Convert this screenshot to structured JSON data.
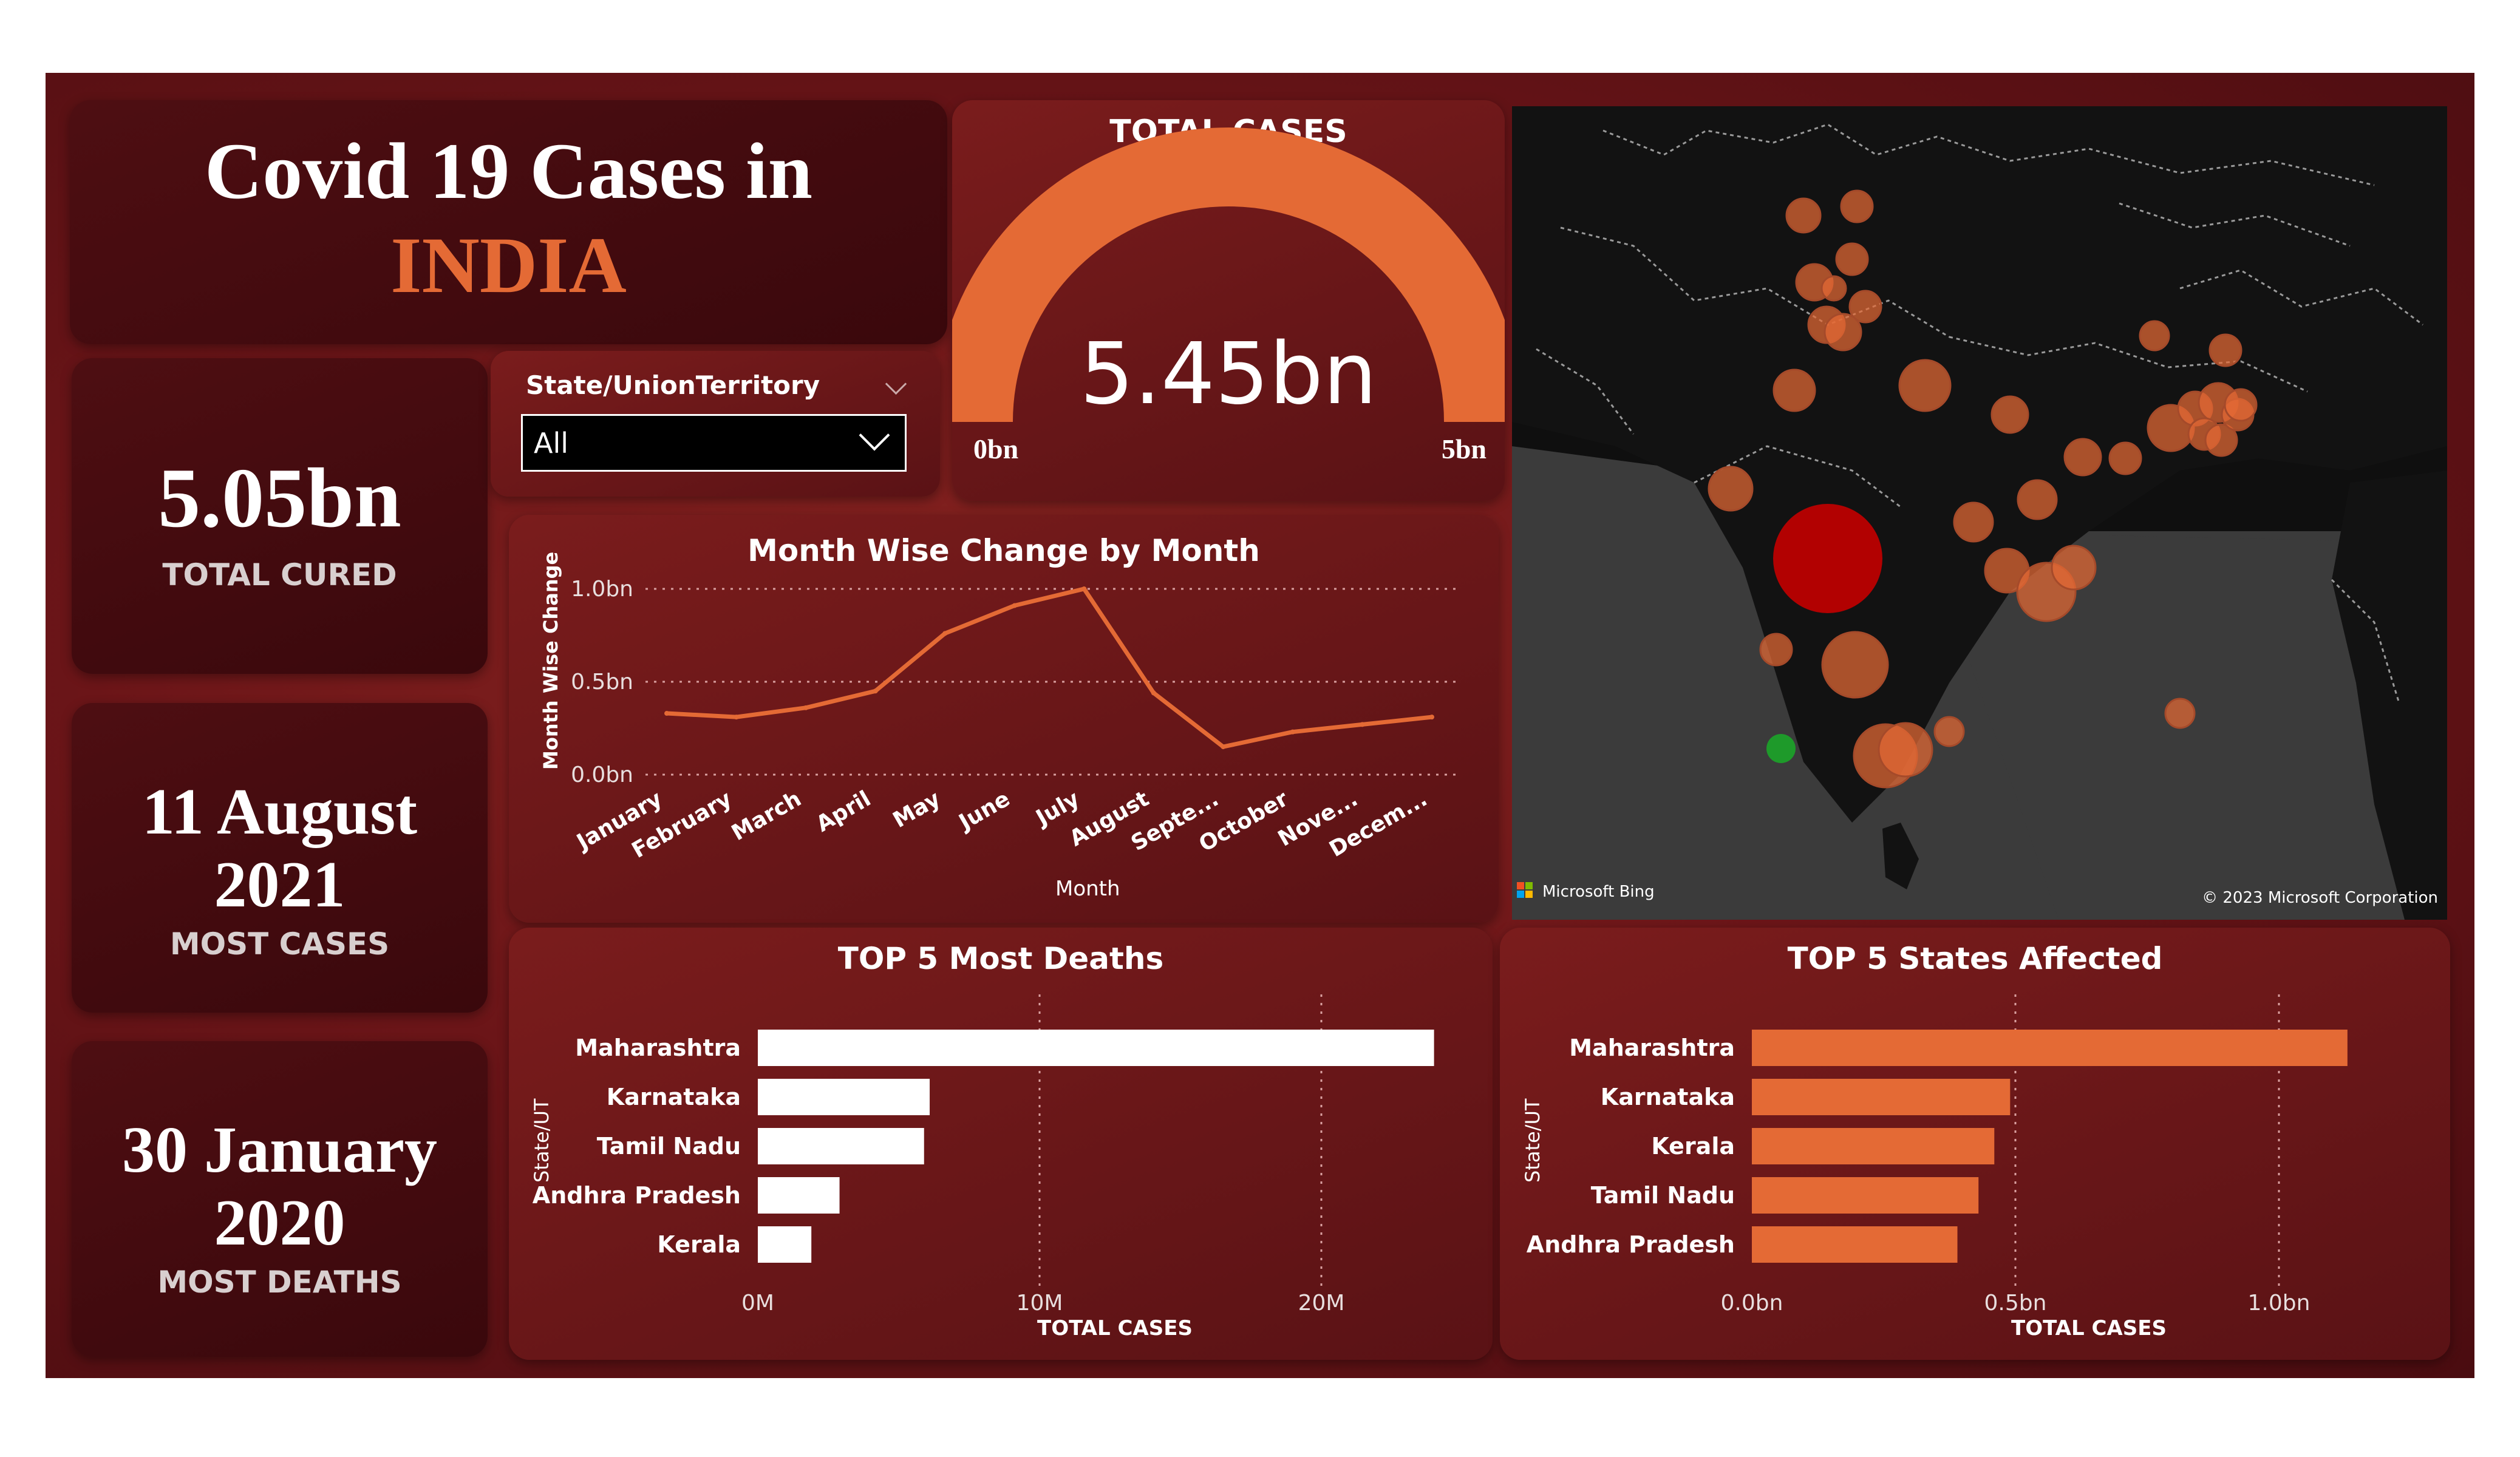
{
  "header": {
    "title_line1": "Covid 19 Cases in",
    "title_line2": "INDIA"
  },
  "kpis": {
    "total_cured": {
      "value": "5.05bn",
      "label": "TOTAL CURED"
    },
    "most_cases": {
      "value_line1": "11 August",
      "value_line2": "2021",
      "label": "MOST CASES"
    },
    "most_deaths": {
      "value_line1": "30 January",
      "value_line2": "2020",
      "label": "MOST DEATHS"
    }
  },
  "slicer": {
    "label": "State/UnionTerritory",
    "selected": "All"
  },
  "gauge": {
    "title": "TOTAL CASES",
    "value_label": "5.45bn",
    "min_label": "0bn",
    "max_label": "5bn",
    "fill_fraction": 1.0
  },
  "map": {
    "attribution_left": "Microsoft Bing",
    "attribution_right": "© 2023 Microsoft Corporation"
  },
  "colors": {
    "accent": "#e46a35",
    "background": "#6b1518",
    "card": "#3e0a0e",
    "highlight_bubble": "#c00000",
    "green_bubble": "#1e9a2a"
  },
  "chart_data": [
    {
      "type": "line",
      "title": "Month Wise Change by Month",
      "xlabel": "Month",
      "ylabel": "Month Wise Change",
      "categories": [
        "January",
        "February",
        "March",
        "April",
        "May",
        "June",
        "July",
        "August",
        "Septe...",
        "October",
        "Nove...",
        "Decem..."
      ],
      "values": [
        0.33,
        0.31,
        0.36,
        0.45,
        0.76,
        0.91,
        1.0,
        0.44,
        0.15,
        0.23,
        0.27,
        0.31
      ],
      "yticks": [
        "0.0bn",
        "0.5bn",
        "1.0bn"
      ],
      "ytick_values": [
        0,
        0.5,
        1.0
      ],
      "ylim": [
        0,
        1.0
      ],
      "color": "#e46a35",
      "grid": "dotted horizontal"
    },
    {
      "type": "bar",
      "orientation": "horizontal",
      "title": "TOP 5 Most Deaths",
      "xlabel": "TOTAL CASES",
      "ylabel": "State/UT",
      "categories": [
        "Maharashtra",
        "Karnataka",
        "Tamil Nadu",
        "Andhra Pradesh",
        "Kerala"
      ],
      "values": [
        24000000,
        6100000,
        5900000,
        2900000,
        1900000
      ],
      "xticks": [
        "0M",
        "10M",
        "20M"
      ],
      "xtick_values": [
        0,
        10000000,
        20000000
      ],
      "xlim": [
        0,
        25000000
      ],
      "color": "#ffffff"
    },
    {
      "type": "bar",
      "orientation": "horizontal",
      "title": "TOP 5 States Affected",
      "xlabel": "TOTAL CASES",
      "ylabel": "State/UT",
      "categories": [
        "Maharashtra",
        "Karnataka",
        "Kerala",
        "Tamil Nadu",
        "Andhra Pradesh"
      ],
      "values": [
        1130000000,
        490000000,
        460000000,
        430000000,
        390000000
      ],
      "xticks": [
        "0.0bn",
        "0.5bn",
        "1.0bn"
      ],
      "xtick_values": [
        0,
        500000000,
        1000000000
      ],
      "xlim": [
        0,
        1250000000
      ],
      "color": "#e46a35"
    }
  ]
}
